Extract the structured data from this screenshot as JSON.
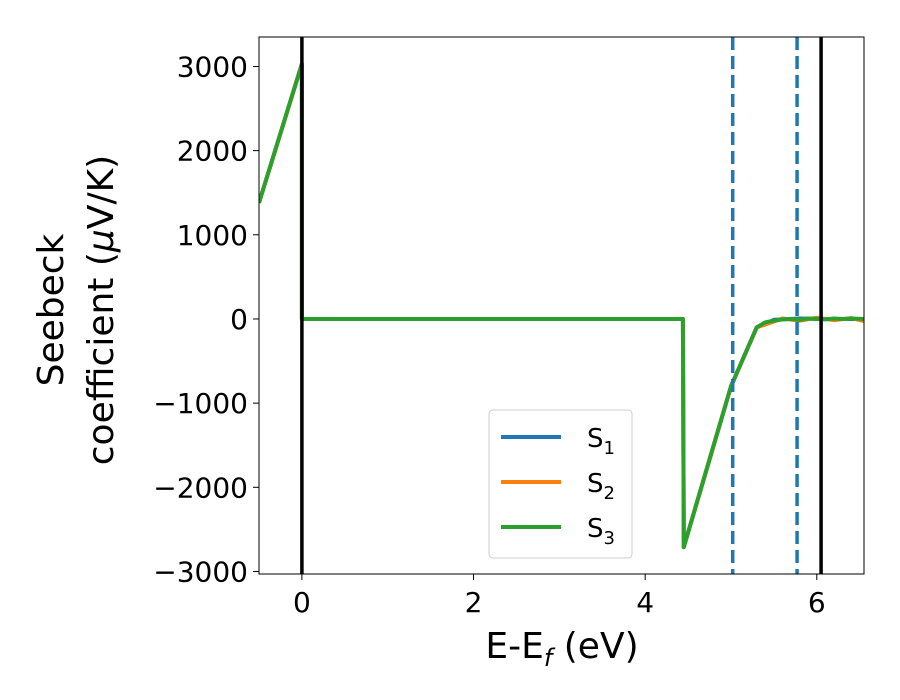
{
  "chart_data": {
    "type": "line",
    "xlabel": "E-E",
    "xlabel_sub": "f",
    "xlabel_unit": " (eV)",
    "ylabel_line1": "Seebeck",
    "ylabel_line2_prefix": "coefficient  (",
    "ylabel_mu": "μ",
    "ylabel_line2_suffix": "V/K)",
    "xlim": [
      -0.5,
      6.55
    ],
    "ylim": [
      -3030,
      3350
    ],
    "xticks": [
      0,
      2,
      4,
      6
    ],
    "xtick_labels": [
      "0",
      "2",
      "4",
      "6"
    ],
    "yticks": [
      3000,
      2000,
      1000,
      0,
      -1000,
      -2000,
      -3000
    ],
    "ytick_labels": [
      "3000",
      "2000",
      "1000",
      "0",
      "−1000",
      "−2000",
      "−3000"
    ],
    "vlines_solid": [
      0,
      6.05
    ],
    "vlines_dashed": [
      5.02,
      5.77
    ],
    "colors": {
      "s1": "#1f77b4",
      "s2": "#ff7f0e",
      "s3": "#2ca02c",
      "vline_solid": "#000000",
      "vline_dashed": "#1f77b4"
    },
    "series": [
      {
        "name": "S",
        "sub": "1",
        "color_key": "s1",
        "x": [
          -0.5,
          0.0,
          0.0,
          4.44,
          4.45,
          5.0,
          5.3,
          5.5,
          5.8,
          6.1,
          6.55
        ],
        "y": [
          1380,
          3030,
          0,
          0,
          -2710,
          -800,
          -100,
          -10,
          5,
          0,
          0
        ]
      },
      {
        "name": "S",
        "sub": "2",
        "color_key": "s2",
        "x": [
          -0.5,
          0.0,
          0.0,
          4.44,
          4.45,
          5.0,
          5.3,
          5.5,
          5.6,
          5.8,
          6.0,
          6.2,
          6.4,
          6.55
        ],
        "y": [
          1380,
          3030,
          0,
          0,
          -2710,
          -800,
          -100,
          -30,
          5,
          -20,
          15,
          -15,
          10,
          -25
        ]
      },
      {
        "name": "S",
        "sub": "3",
        "color_key": "s3",
        "x": [
          -0.5,
          0.0,
          0.0,
          4.44,
          4.45,
          5.0,
          5.3,
          5.4,
          5.5,
          5.6,
          5.7,
          5.8,
          5.9,
          6.0,
          6.1,
          6.2,
          6.3,
          6.4,
          6.55
        ],
        "y": [
          1380,
          3030,
          0,
          0,
          -2710,
          -800,
          -100,
          -40,
          -20,
          -5,
          0,
          -10,
          5,
          0,
          -5,
          5,
          0,
          5,
          0
        ]
      }
    ],
    "legend_position": "lower-center"
  }
}
